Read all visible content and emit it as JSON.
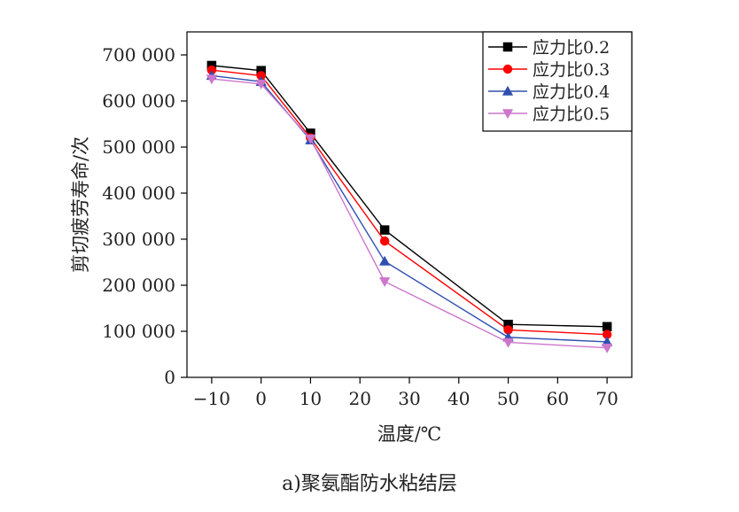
{
  "chart_data": {
    "type": "line",
    "xlabel": "温度/℃",
    "ylabel": "剪切疲劳寿命/次",
    "x_ticks": [
      -10,
      0,
      10,
      20,
      30,
      40,
      50,
      60,
      70
    ],
    "x_tick_labels": [
      "−10",
      "0",
      "10",
      "20",
      "30",
      "40",
      "50",
      "60",
      "70"
    ],
    "y_ticks": [
      0,
      100000,
      200000,
      300000,
      400000,
      500000,
      600000,
      700000
    ],
    "y_tick_labels": [
      "0",
      "100 000",
      "200 000",
      "300 000",
      "400 000",
      "500 000",
      "600 000",
      "700 000"
    ],
    "xlim": [
      -15,
      75
    ],
    "ylim": [
      0,
      750000
    ],
    "x": [
      -10,
      0,
      10,
      25,
      50,
      70
    ],
    "series": [
      {
        "name": "应力比0.2",
        "color": "#000000",
        "marker": "square",
        "values": [
          677000,
          666000,
          530000,
          320000,
          115000,
          110000
        ]
      },
      {
        "name": "应力比0.3",
        "color": "#ff0000",
        "marker": "circle",
        "values": [
          667000,
          655000,
          520000,
          296000,
          103000,
          93000
        ]
      },
      {
        "name": "应力比0.4",
        "color": "#3050b0",
        "marker": "triangle-up",
        "values": [
          655000,
          642000,
          515000,
          252000,
          87000,
          77000
        ]
      },
      {
        "name": "应力比0.5",
        "color": "#cc77cc",
        "marker": "triangle-down",
        "values": [
          648000,
          637000,
          518000,
          208000,
          76000,
          64000
        ]
      }
    ],
    "legend_position": "top-right"
  },
  "caption": "a)聚氨酯防水粘结层"
}
